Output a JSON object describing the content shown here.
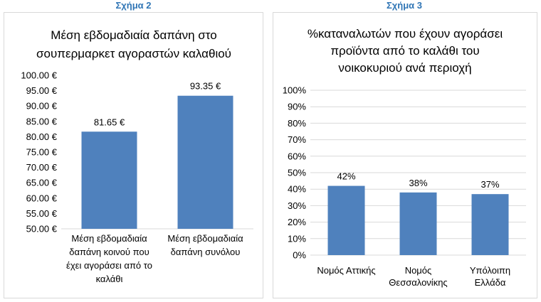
{
  "figures": [
    {
      "label": "Σχήμα 2"
    },
    {
      "label": "Σχήμα 3"
    }
  ],
  "colors": {
    "bar": "#4f81bd",
    "grid": "#d9d9d9",
    "figure_label": "#2f75b5",
    "text": "#000000"
  },
  "chart_data": [
    {
      "type": "bar",
      "title": [
        "Μέση εβδομαδιαία δαπάνη στο",
        "σουπερμαρκετ αγοραστών καλαθιού"
      ],
      "categories": [
        [
          "Μέση εβδομαδιαία",
          "δαπάνη κοινού που",
          "έχει αγοράσει από το",
          "καλάθι"
        ],
        [
          "Μέση εβδομαδιαία",
          "δαπάνη συνόλου"
        ]
      ],
      "values": [
        81.65,
        93.35
      ],
      "data_labels": [
        "81.65 €",
        "93.35 €"
      ],
      "yticks": [
        "50.00 €",
        "55.00 €",
        "60.00 €",
        "65.00 €",
        "70.00 €",
        "75.00 €",
        "80.00 €",
        "85.00 €",
        "90.00 €",
        "95.00 €",
        "100.00 €"
      ],
      "ylim": [
        50,
        100
      ],
      "grid": false
    },
    {
      "type": "bar",
      "title": [
        "%καταναλωτών που έχουν αγοράσει",
        "προϊόντα από το καλάθι του",
        "νοικοκυριού ανά περιοχή"
      ],
      "categories": [
        [
          "Νομός Αττικής"
        ],
        [
          "Νομός",
          "Θεσσαλονίκης"
        ],
        [
          "Υπόλοιπη",
          "Ελλάδα"
        ]
      ],
      "values": [
        42,
        38,
        37
      ],
      "data_labels": [
        "42%",
        "38%",
        "37%"
      ],
      "yticks": [
        "0%",
        "10%",
        "20%",
        "30%",
        "40%",
        "50%",
        "60%",
        "70%",
        "80%",
        "90%",
        "100%"
      ],
      "ylim": [
        0,
        100
      ],
      "grid": true
    }
  ]
}
